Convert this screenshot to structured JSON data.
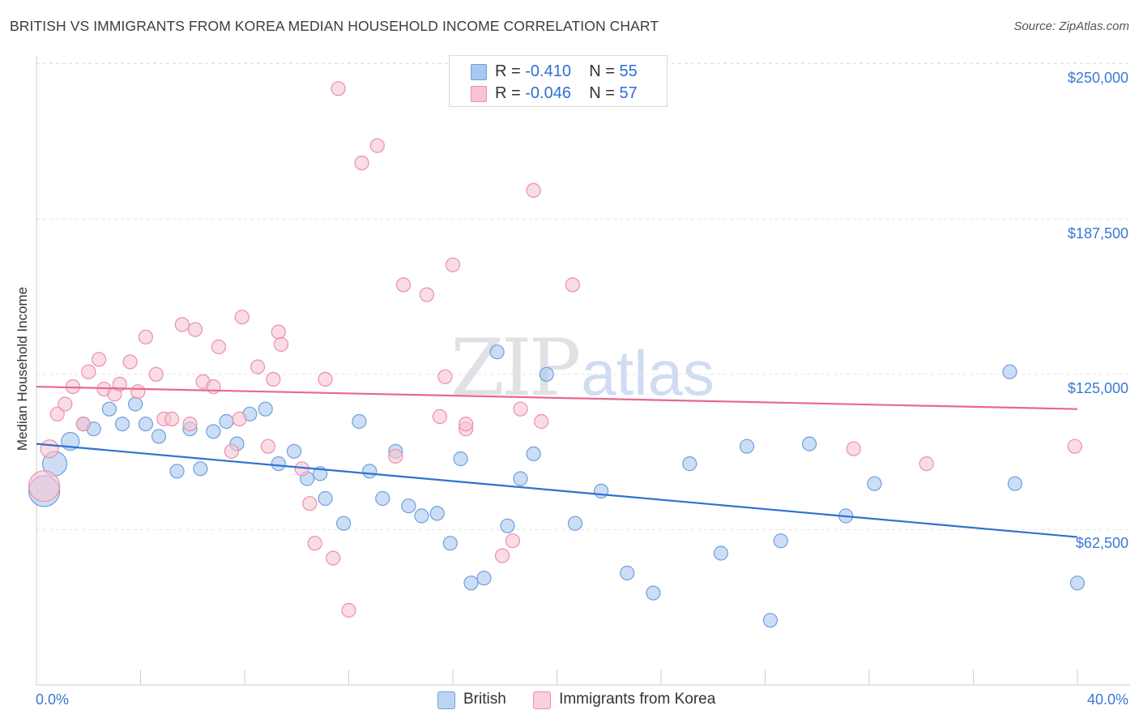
{
  "title": "BRITISH VS IMMIGRANTS FROM KOREA MEDIAN HOUSEHOLD INCOME CORRELATION CHART",
  "source": "Source: ZipAtlas.com",
  "watermark": {
    "zip": "ZIP",
    "atlas": "atlas"
  },
  "legend_top": {
    "british": {
      "r_label": "R =",
      "r_value": "-0.410",
      "n_label": "N =",
      "n_value": "55"
    },
    "korea": {
      "r_label": "R =",
      "r_value": "-0.046",
      "n_label": "N =",
      "n_value": "57"
    }
  },
  "colors": {
    "british_fill": "#a9c8f0",
    "british_stroke": "#6f9fdc",
    "british_line": "#2f72d0",
    "korea_fill": "#f7c4d2",
    "korea_stroke": "#ec8fab",
    "korea_line": "#e7688f",
    "grid": "#e3e3e3",
    "tick_text": "#3a78d4"
  },
  "chart_data": {
    "type": "scatter",
    "title": "BRITISH VS IMMIGRANTS FROM KOREA MEDIAN HOUSEHOLD INCOME CORRELATION CHART",
    "xlabel": "",
    "ylabel": "Median Household Income",
    "xlim": [
      0,
      40
    ],
    "ylim": [
      0,
      256000
    ],
    "x_tick_labels": [
      "0.0%",
      "40.0%"
    ],
    "y_ticks": [
      62500,
      125000,
      187500,
      250000
    ],
    "y_tick_labels": [
      "$62,500",
      "$125,000",
      "$187,500",
      "$250,000"
    ],
    "grid": true,
    "legend_placement": "top-center",
    "series": [
      {
        "name": "British",
        "r": -0.41,
        "n": 55,
        "trend": {
          "x": [
            0,
            40
          ],
          "y": [
            97000,
            59500
          ]
        },
        "points": [
          [
            0.3,
            78000,
            "l"
          ],
          [
            0.7,
            89000,
            "m"
          ],
          [
            1.3,
            98000,
            "s"
          ],
          [
            1.8,
            105000
          ],
          [
            2.2,
            103000
          ],
          [
            2.8,
            111000
          ],
          [
            3.3,
            105000
          ],
          [
            3.8,
            113000
          ],
          [
            4.2,
            105000
          ],
          [
            4.7,
            100000
          ],
          [
            5.4,
            86000
          ],
          [
            5.9,
            103000
          ],
          [
            6.3,
            87000
          ],
          [
            6.8,
            102000
          ],
          [
            7.3,
            106000
          ],
          [
            7.7,
            97000
          ],
          [
            8.2,
            109000
          ],
          [
            8.8,
            111000
          ],
          [
            9.3,
            89000
          ],
          [
            9.9,
            94000
          ],
          [
            10.4,
            83000
          ],
          [
            10.9,
            85000
          ],
          [
            11.1,
            75000
          ],
          [
            11.8,
            65000
          ],
          [
            12.4,
            106000
          ],
          [
            12.8,
            86000
          ],
          [
            13.3,
            75000
          ],
          [
            13.8,
            94000
          ],
          [
            14.3,
            72000
          ],
          [
            14.8,
            68000
          ],
          [
            15.4,
            69000
          ],
          [
            15.9,
            57000
          ],
          [
            16.3,
            91000
          ],
          [
            16.7,
            41000
          ],
          [
            17.2,
            43000
          ],
          [
            17.7,
            134000
          ],
          [
            18.1,
            64000
          ],
          [
            18.6,
            83000
          ],
          [
            19.1,
            93000
          ],
          [
            19.6,
            125000
          ],
          [
            20.7,
            65000
          ],
          [
            21.7,
            78000
          ],
          [
            22.7,
            45000
          ],
          [
            23.7,
            37000
          ],
          [
            25.1,
            89000
          ],
          [
            26.3,
            53000
          ],
          [
            27.3,
            96000
          ],
          [
            28.2,
            26000
          ],
          [
            28.6,
            58000
          ],
          [
            29.7,
            97000
          ],
          [
            31.1,
            68000
          ],
          [
            32.2,
            81000
          ],
          [
            37.4,
            126000
          ],
          [
            37.6,
            81000
          ],
          [
            40.0,
            41000
          ]
        ]
      },
      {
        "name": "Immigrants from Korea",
        "r": -0.046,
        "n": 57,
        "trend": {
          "x": [
            0,
            40
          ],
          "y": [
            120000,
            111000
          ]
        },
        "points": [
          [
            0.3,
            80000,
            "l"
          ],
          [
            0.5,
            95000,
            "s"
          ],
          [
            0.8,
            109000
          ],
          [
            1.1,
            113000
          ],
          [
            1.4,
            120000
          ],
          [
            1.8,
            105000
          ],
          [
            2.0,
            126000
          ],
          [
            2.4,
            131000
          ],
          [
            2.6,
            119000
          ],
          [
            3.0,
            117000
          ],
          [
            3.2,
            121000
          ],
          [
            3.6,
            130000
          ],
          [
            3.9,
            118000
          ],
          [
            4.2,
            140000
          ],
          [
            4.6,
            125000
          ],
          [
            4.9,
            107000
          ],
          [
            5.2,
            107000
          ],
          [
            5.6,
            145000
          ],
          [
            5.9,
            105000
          ],
          [
            6.1,
            143000
          ],
          [
            6.4,
            122000
          ],
          [
            6.8,
            120000
          ],
          [
            7.0,
            136000
          ],
          [
            7.5,
            94000
          ],
          [
            7.8,
            107000
          ],
          [
            7.9,
            148000
          ],
          [
            8.5,
            128000
          ],
          [
            8.9,
            96000
          ],
          [
            9.1,
            123000
          ],
          [
            9.3,
            142000
          ],
          [
            9.4,
            137000
          ],
          [
            10.2,
            87000
          ],
          [
            10.5,
            73000
          ],
          [
            10.7,
            57000
          ],
          [
            11.1,
            123000
          ],
          [
            11.4,
            51000
          ],
          [
            11.6,
            240000
          ],
          [
            12.0,
            30000
          ],
          [
            12.5,
            210000
          ],
          [
            13.1,
            217000
          ],
          [
            13.8,
            92000
          ],
          [
            14.1,
            161000
          ],
          [
            15.0,
            157000
          ],
          [
            15.5,
            108000
          ],
          [
            15.7,
            124000
          ],
          [
            16.0,
            169000
          ],
          [
            16.5,
            103000
          ],
          [
            16.5,
            105000
          ],
          [
            17.9,
            52000
          ],
          [
            18.3,
            58000
          ],
          [
            18.6,
            111000
          ],
          [
            19.1,
            199000
          ],
          [
            19.4,
            106000
          ],
          [
            20.6,
            161000
          ],
          [
            31.4,
            95000
          ],
          [
            34.2,
            89000
          ],
          [
            39.9,
            96000
          ]
        ]
      }
    ]
  }
}
